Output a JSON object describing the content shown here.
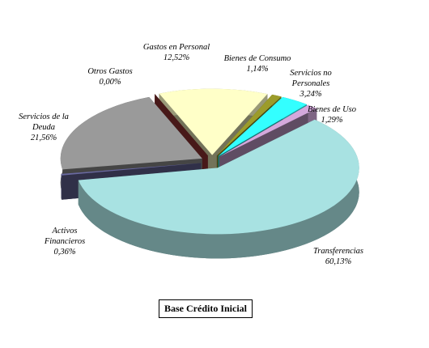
{
  "chart_data": {
    "type": "pie",
    "title": "Base Crédito Inicial",
    "categories": [
      "Gastos en Personal",
      "Bienes de Consumo",
      "Servicios no Personales",
      "Bienes de Uso",
      "Transferencias",
      "Activos Financieros",
      "Servicios de la Deuda",
      "Otros Gastos"
    ],
    "values": [
      12.52,
      1.14,
      3.24,
      1.29,
      60.13,
      0.36,
      21.56,
      0.0
    ],
    "value_labels": [
      "12,52%",
      "1,14%",
      "3,24%",
      "1,29%",
      "60,13%",
      "0,36%",
      "21,56%",
      "0,00%"
    ],
    "colors": [
      "#ffffc8",
      "#9c9c2a",
      "#33ffff",
      "#d4a8dc",
      "#a8e2e2",
      "#6a6aa0",
      "#9a9a9a",
      "#a03838"
    ]
  }
}
